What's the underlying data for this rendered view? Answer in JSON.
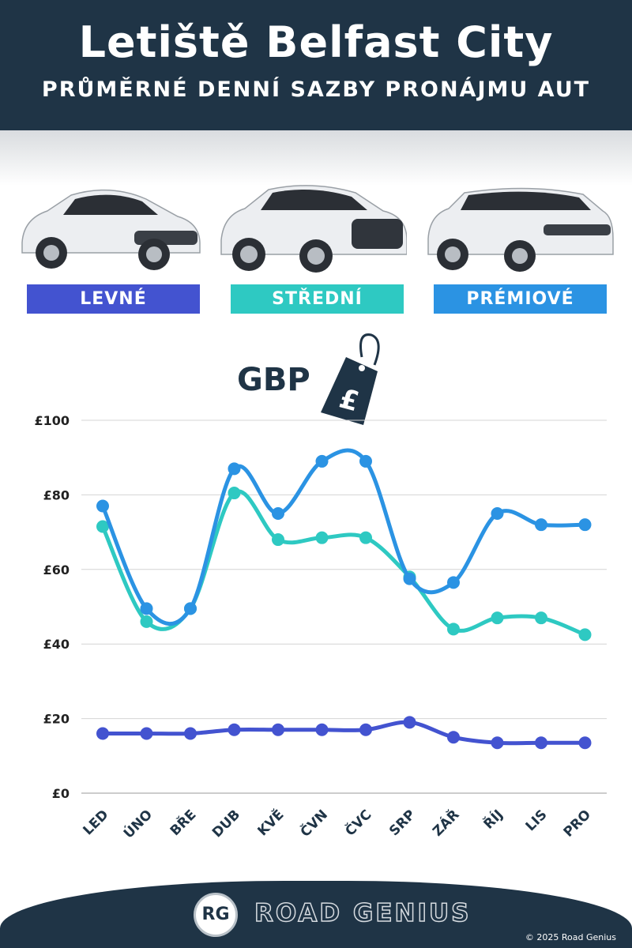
{
  "header": {
    "title": "Letiště Belfast City",
    "subtitle": "PRŮMĚRNÉ DENNÍ SAZBY PRONÁJMU AUT"
  },
  "categories": [
    {
      "label": "LEVNÉ",
      "color": "#4353d0"
    },
    {
      "label": "STŘEDNÍ",
      "color": "#2ec9c2"
    },
    {
      "label": "PRÉMIOVÉ",
      "color": "#2b93e3"
    }
  ],
  "currency_badge": {
    "label": "GBP",
    "symbol": "£"
  },
  "chart_data": {
    "type": "line",
    "categories": [
      "LED",
      "ÚNO",
      "BŘE",
      "DUB",
      "KVĚ",
      "ČVN",
      "ČVC",
      "SRP",
      "ZÁŘ",
      "ŘÍJ",
      "LIS",
      "PRO"
    ],
    "series": [
      {
        "name": "LEVNÉ",
        "color": "#4353d0",
        "values": [
          16,
          16,
          16,
          17,
          17,
          17,
          17,
          19,
          15,
          13.5,
          13.5,
          13.5
        ]
      },
      {
        "name": "STŘEDNÍ",
        "color": "#2ec9c2",
        "values": [
          71.5,
          46,
          49.5,
          80.5,
          68,
          68.5,
          68.5,
          58,
          44,
          47,
          47,
          42.5
        ]
      },
      {
        "name": "PRÉMIOVÉ",
        "color": "#2b93e3",
        "values": [
          77,
          49.5,
          49.5,
          87,
          75,
          89,
          89,
          57.5,
          56.5,
          75,
          72,
          72
        ]
      }
    ],
    "y_ticks": [
      "£0",
      "£20",
      "£40",
      "£60",
      "£80",
      "£100"
    ],
    "ylim": [
      0,
      100
    ],
    "grid": true
  },
  "footer": {
    "brand": "ROAD GENIUS",
    "logo": "RG",
    "copyright": "© 2025 Road Genius"
  }
}
